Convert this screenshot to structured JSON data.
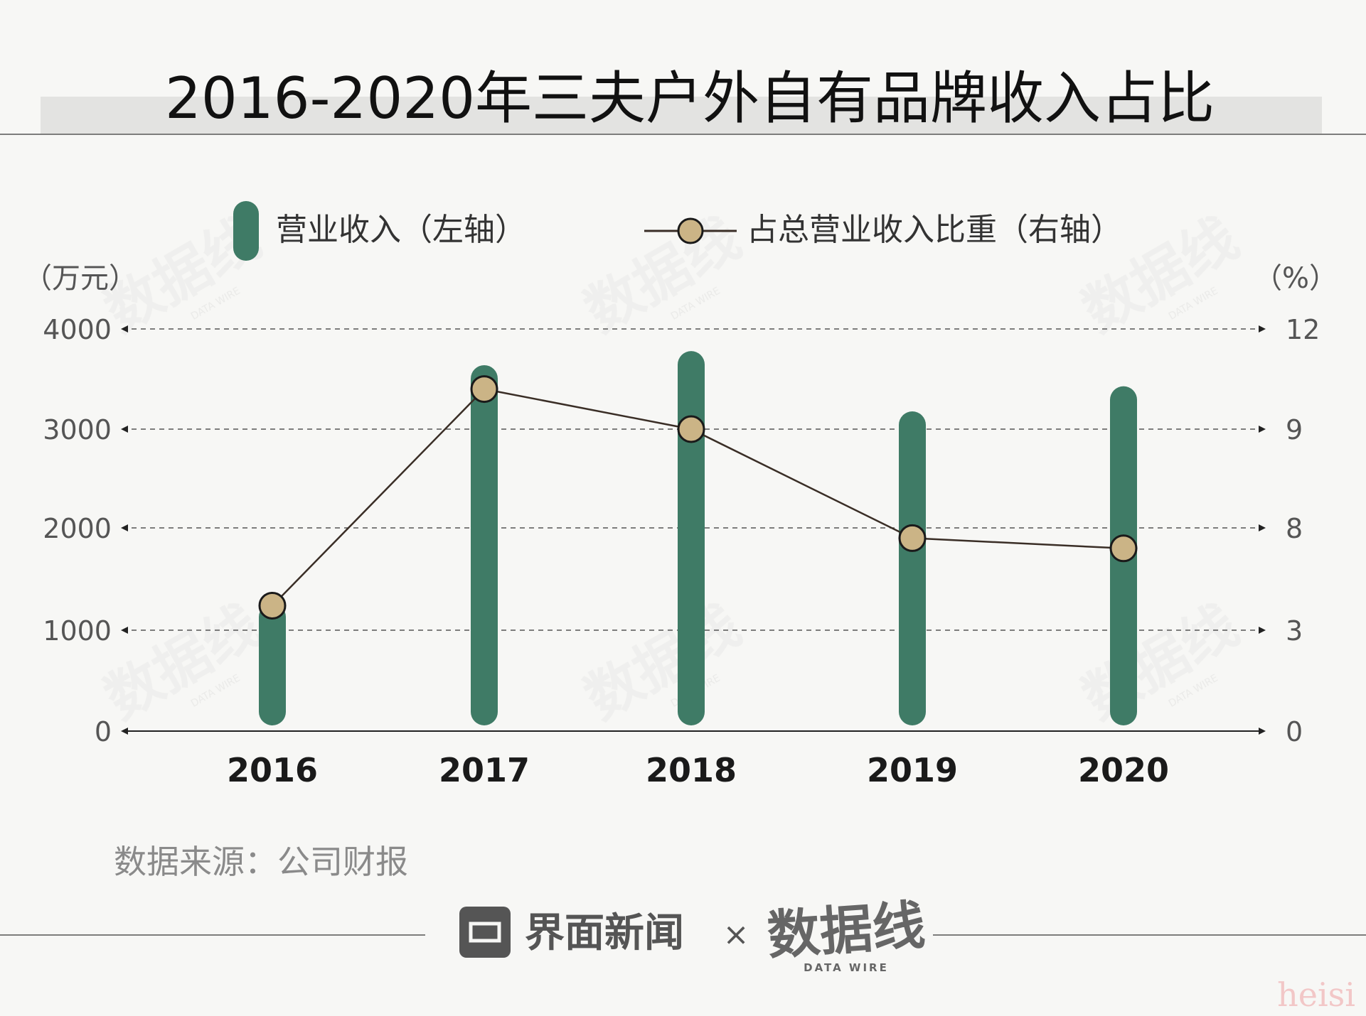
{
  "header": {
    "title": "2016-2020年三夫户外自有品牌收入占比"
  },
  "colors": {
    "bar": "#3f7b66",
    "line": "#3a2e26",
    "marker_fill": "#cbb486",
    "marker_stroke": "#1a1a1a",
    "title_band": "#e3e3e1"
  },
  "chart_data": {
    "type": "bar+line",
    "categories": [
      "2016",
      "2017",
      "2018",
      "2019",
      "2020"
    ],
    "series": [
      {
        "name": "营业收入（左轴）",
        "type": "bar",
        "axis": "left",
        "values": [
          1270,
          3640,
          3780,
          3180,
          3430
        ]
      },
      {
        "name": "占总营业收入比重（右轴）",
        "type": "line",
        "axis": "right",
        "values": [
          4.2,
          10.2,
          9.0,
          7.5,
          7.0
        ]
      }
    ],
    "left_axis": {
      "unit": "（万元）",
      "ticks": [
        "0",
        "1000",
        "2000",
        "3000",
        "4000"
      ],
      "tick_values": [
        0,
        1000,
        2000,
        3000,
        4000
      ],
      "ylim": [
        0,
        4000
      ]
    },
    "right_axis": {
      "unit": "（%）",
      "ticks": [
        "0",
        "3",
        "8",
        "9",
        "12"
      ]
    },
    "grid": "dashed",
    "legend_position": "top"
  },
  "footer": {
    "source": "数据来源：公司财报",
    "brand_left": "界面新闻",
    "cross": "×",
    "brand_right": "数据线",
    "brand_right_sub": "DATA WIRE"
  },
  "watermark": {
    "text": "数据线",
    "sub": "DATA WIRE",
    "corner": "heisi"
  }
}
